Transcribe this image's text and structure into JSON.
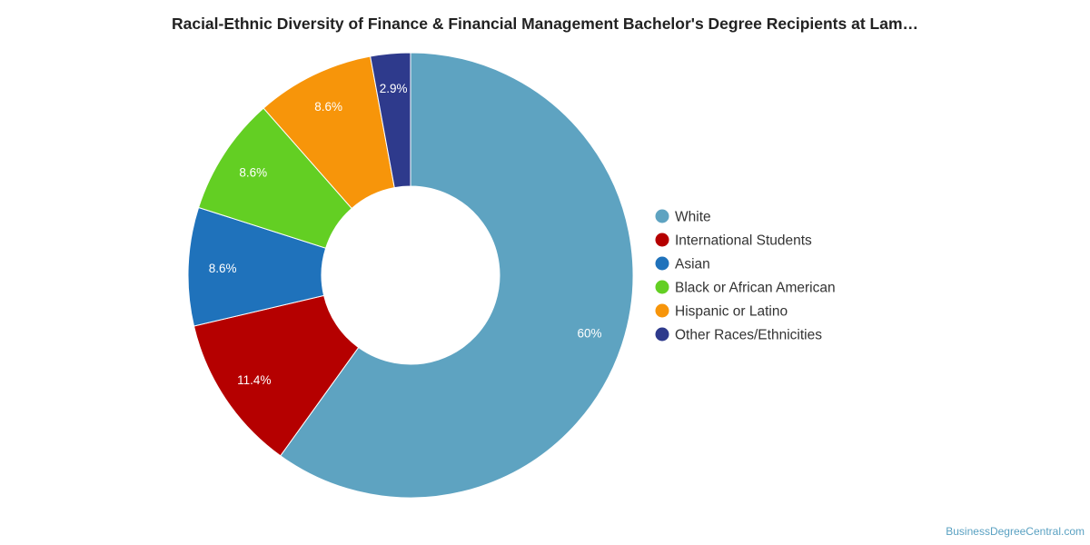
{
  "chart_data": {
    "type": "pie",
    "donut": true,
    "title": "Racial-Ethnic Diversity of Finance & Financial Management Bachelor's Degree Recipients at Lam…",
    "legend_position": "right",
    "categories": [
      "White",
      "International Students",
      "Asian",
      "Black or African American",
      "Hispanic or Latino",
      "Other Races/Ethnicities"
    ],
    "values": [
      60,
      11.4,
      8.6,
      8.6,
      8.6,
      2.9
    ],
    "labels": [
      "60%",
      "11.4%",
      "8.6%",
      "8.6%",
      "8.6%",
      "2.9%"
    ],
    "colors": [
      "#5ea3c1",
      "#b50000",
      "#1f72bb",
      "#63cf23",
      "#f7950a",
      "#2e3a8c"
    ]
  },
  "watermark": "BusinessDegreeCentral.com"
}
